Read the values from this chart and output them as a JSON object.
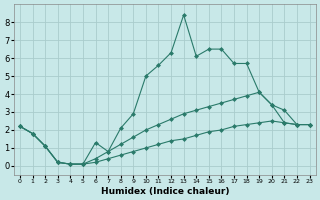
{
  "xlabel": "Humidex (Indice chaleur)",
  "xlim": [
    -0.5,
    23.5
  ],
  "ylim": [
    -0.5,
    9.0
  ],
  "yticks": [
    0,
    1,
    2,
    3,
    4,
    5,
    6,
    7,
    8
  ],
  "xticks": [
    0,
    1,
    2,
    3,
    4,
    5,
    6,
    7,
    8,
    9,
    10,
    11,
    12,
    13,
    14,
    15,
    16,
    17,
    18,
    19,
    20,
    21,
    22,
    23
  ],
  "background_color": "#c8e8e8",
  "grid_color": "#aacccc",
  "line_color": "#2a7a6a",
  "line1_x": [
    0,
    1,
    2,
    3,
    4,
    5,
    6,
    7,
    8,
    9,
    10,
    11,
    12,
    13,
    14,
    15,
    16,
    17,
    18,
    19,
    20,
    21,
    22,
    23
  ],
  "line1_y": [
    2.2,
    1.8,
    1.1,
    0.2,
    0.1,
    0.1,
    1.3,
    0.8,
    2.1,
    2.9,
    5.0,
    5.6,
    6.3,
    8.4,
    6.1,
    6.5,
    6.5,
    5.7,
    5.7,
    4.1,
    3.4,
    2.4,
    2.3,
    2.3
  ],
  "line2_x": [
    0,
    1,
    2,
    3,
    4,
    5,
    6,
    7,
    8,
    9,
    10,
    11,
    12,
    13,
    14,
    15,
    16,
    17,
    18,
    19,
    20,
    21,
    22,
    23
  ],
  "line2_y": [
    2.2,
    1.8,
    1.1,
    0.2,
    0.1,
    0.1,
    0.4,
    0.8,
    1.2,
    1.6,
    2.0,
    2.3,
    2.6,
    2.9,
    3.1,
    3.3,
    3.5,
    3.7,
    3.9,
    4.1,
    3.4,
    3.1,
    2.3,
    2.3
  ],
  "line3_x": [
    0,
    1,
    2,
    3,
    4,
    5,
    6,
    7,
    8,
    9,
    10,
    11,
    12,
    13,
    14,
    15,
    16,
    17,
    18,
    19,
    20,
    21,
    22,
    23
  ],
  "line3_y": [
    2.2,
    1.8,
    1.1,
    0.2,
    0.1,
    0.1,
    0.2,
    0.4,
    0.6,
    0.8,
    1.0,
    1.2,
    1.4,
    1.5,
    1.7,
    1.9,
    2.0,
    2.2,
    2.3,
    2.4,
    2.5,
    2.4,
    2.3,
    2.3
  ],
  "figsize": [
    3.2,
    2.0
  ],
  "dpi": 100
}
